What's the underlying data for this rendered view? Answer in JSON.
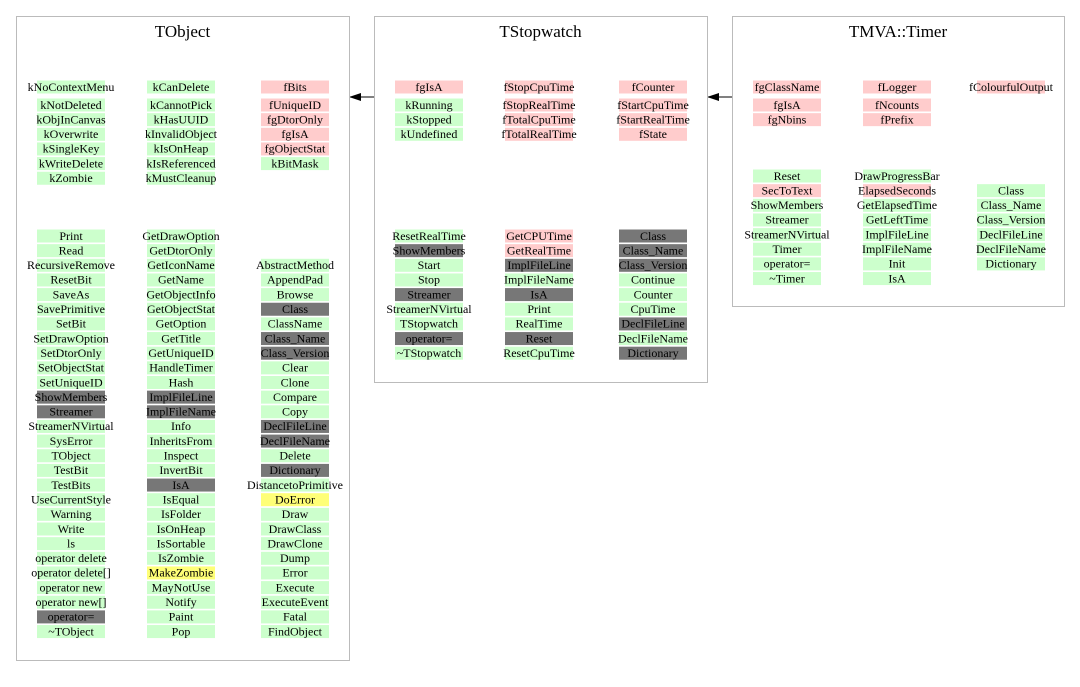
{
  "boxes": [
    {
      "title": "TObject",
      "members": [
        [
          {
            "label": "kNoContextMenu",
            "color": "#ccffcc"
          },
          {
            "label": "kNotDeleted",
            "color": "#ccffcc"
          },
          {
            "label": "kObjInCanvas",
            "color": "#ccffcc"
          },
          {
            "label": "kOverwrite",
            "color": "#ccffcc"
          },
          {
            "label": "kSingleKey",
            "color": "#ccffcc"
          },
          {
            "label": "kWriteDelete",
            "color": "#ccffcc"
          },
          {
            "label": "kZombie",
            "color": "#ccffcc"
          }
        ],
        [
          {
            "label": "kCanDelete",
            "color": "#ccffcc"
          },
          {
            "label": "kCannotPick",
            "color": "#ccffcc"
          },
          {
            "label": "kHasUUID",
            "color": "#ccffcc"
          },
          {
            "label": "kInvalidObject",
            "color": "#ccffcc"
          },
          {
            "label": "kIsOnHeap",
            "color": "#ccffcc"
          },
          {
            "label": "kIsReferenced",
            "color": "#ccffcc"
          },
          {
            "label": "kMustCleanup",
            "color": "#ccffcc"
          }
        ],
        [
          {
            "label": "fBits",
            "color": "#ffcccc"
          },
          {
            "label": "fUniqueID",
            "color": "#ffcccc"
          },
          {
            "label": "fgDtorOnly",
            "color": "#ffcccc"
          },
          {
            "label": "fgIsA",
            "color": "#ffcccc"
          },
          {
            "label": "fgObjectStat",
            "color": "#ffcccc"
          },
          {
            "label": "kBitMask",
            "color": "#ccffcc"
          }
        ]
      ],
      "methods": [
        [
          {
            "label": "Print",
            "color": "#ccffcc"
          },
          {
            "label": "Read",
            "color": "#ccffcc"
          },
          {
            "label": "RecursiveRemove",
            "color": "#ccffcc"
          },
          {
            "label": "ResetBit",
            "color": "#ccffcc"
          },
          {
            "label": "SaveAs",
            "color": "#ccffcc"
          },
          {
            "label": "SavePrimitive",
            "color": "#ccffcc"
          },
          {
            "label": "SetBit",
            "color": "#ccffcc"
          },
          {
            "label": "SetDrawOption",
            "color": "#ccffcc"
          },
          {
            "label": "SetDtorOnly",
            "color": "#ccffcc"
          },
          {
            "label": "SetObjectStat",
            "color": "#ccffcc"
          },
          {
            "label": "SetUniqueID",
            "color": "#ccffcc"
          },
          {
            "label": "ShowMembers",
            "color": "#777777"
          },
          {
            "label": "Streamer",
            "color": "#777777"
          },
          {
            "label": "StreamerNVirtual",
            "color": "#ccffcc"
          },
          {
            "label": "SysError",
            "color": "#ccffcc"
          },
          {
            "label": "TObject",
            "color": "#ccffcc"
          },
          {
            "label": "TestBit",
            "color": "#ccffcc"
          },
          {
            "label": "TestBits",
            "color": "#ccffcc"
          },
          {
            "label": "UseCurrentStyle",
            "color": "#ccffcc"
          },
          {
            "label": "Warning",
            "color": "#ccffcc"
          },
          {
            "label": "Write",
            "color": "#ccffcc"
          },
          {
            "label": "ls",
            "color": "#ccffcc"
          },
          {
            "label": "operator delete",
            "color": "#ccffcc"
          },
          {
            "label": "operator delete[]",
            "color": "#ccffcc"
          },
          {
            "label": "operator new",
            "color": "#ccffcc"
          },
          {
            "label": "operator new[]",
            "color": "#ccffcc"
          },
          {
            "label": "operator=",
            "color": "#777777"
          },
          {
            "label": "~TObject",
            "color": "#ccffcc"
          }
        ],
        [
          {
            "label": "GetDrawOption",
            "color": "#ccffcc"
          },
          {
            "label": "GetDtorOnly",
            "color": "#ccffcc"
          },
          {
            "label": "GetIconName",
            "color": "#ccffcc"
          },
          {
            "label": "GetName",
            "color": "#ccffcc"
          },
          {
            "label": "GetObjectInfo",
            "color": "#ccffcc"
          },
          {
            "label": "GetObjectStat",
            "color": "#ccffcc"
          },
          {
            "label": "GetOption",
            "color": "#ccffcc"
          },
          {
            "label": "GetTitle",
            "color": "#ccffcc"
          },
          {
            "label": "GetUniqueID",
            "color": "#ccffcc"
          },
          {
            "label": "HandleTimer",
            "color": "#ccffcc"
          },
          {
            "label": "Hash",
            "color": "#ccffcc"
          },
          {
            "label": "ImplFileLine",
            "color": "#777777"
          },
          {
            "label": "ImplFileName",
            "color": "#777777"
          },
          {
            "label": "Info",
            "color": "#ccffcc"
          },
          {
            "label": "InheritsFrom",
            "color": "#ccffcc"
          },
          {
            "label": "Inspect",
            "color": "#ccffcc"
          },
          {
            "label": "InvertBit",
            "color": "#ccffcc"
          },
          {
            "label": "IsA",
            "color": "#777777"
          },
          {
            "label": "IsEqual",
            "color": "#ccffcc"
          },
          {
            "label": "IsFolder",
            "color": "#ccffcc"
          },
          {
            "label": "IsOnHeap",
            "color": "#ccffcc"
          },
          {
            "label": "IsSortable",
            "color": "#ccffcc"
          },
          {
            "label": "IsZombie",
            "color": "#ccffcc"
          },
          {
            "label": "MakeZombie",
            "color": "#ffff77"
          },
          {
            "label": "MayNotUse",
            "color": "#ccffcc"
          },
          {
            "label": "Notify",
            "color": "#ccffcc"
          },
          {
            "label": "Paint",
            "color": "#ccffcc"
          },
          {
            "label": "Pop",
            "color": "#ccffcc"
          }
        ],
        [
          {
            "label": "AbstractMethod",
            "color": "#ccffcc"
          },
          {
            "label": "AppendPad",
            "color": "#ccffcc"
          },
          {
            "label": "Browse",
            "color": "#ccffcc"
          },
          {
            "label": "Class",
            "color": "#777777"
          },
          {
            "label": "ClassName",
            "color": "#ccffcc"
          },
          {
            "label": "Class_Name",
            "color": "#777777"
          },
          {
            "label": "Class_Version",
            "color": "#777777"
          },
          {
            "label": "Clear",
            "color": "#ccffcc"
          },
          {
            "label": "Clone",
            "color": "#ccffcc"
          },
          {
            "label": "Compare",
            "color": "#ccffcc"
          },
          {
            "label": "Copy",
            "color": "#ccffcc"
          },
          {
            "label": "DeclFileLine",
            "color": "#777777"
          },
          {
            "label": "DeclFileName",
            "color": "#777777"
          },
          {
            "label": "Delete",
            "color": "#ccffcc"
          },
          {
            "label": "Dictionary",
            "color": "#777777"
          },
          {
            "label": "DistancetoPrimitive",
            "color": "#ccffcc"
          },
          {
            "label": "DoError",
            "color": "#ffff77"
          },
          {
            "label": "Draw",
            "color": "#ccffcc"
          },
          {
            "label": "DrawClass",
            "color": "#ccffcc"
          },
          {
            "label": "DrawClone",
            "color": "#ccffcc"
          },
          {
            "label": "Dump",
            "color": "#ccffcc"
          },
          {
            "label": "Error",
            "color": "#ccffcc"
          },
          {
            "label": "Execute",
            "color": "#ccffcc"
          },
          {
            "label": "ExecuteEvent",
            "color": "#ccffcc"
          },
          {
            "label": "Fatal",
            "color": "#ccffcc"
          },
          {
            "label": "FindObject",
            "color": "#ccffcc"
          }
        ]
      ]
    },
    {
      "title": "TStopwatch",
      "members": [
        [
          {
            "label": "fgIsA",
            "color": "#ffcccc"
          },
          {
            "label": "kRunning",
            "color": "#ccffcc"
          },
          {
            "label": "kStopped",
            "color": "#ccffcc"
          },
          {
            "label": "kUndefined",
            "color": "#ccffcc"
          }
        ],
        [
          {
            "label": "fStopCpuTime",
            "color": "#ffcccc"
          },
          {
            "label": "fStopRealTime",
            "color": "#ffcccc"
          },
          {
            "label": "fTotalCpuTime",
            "color": "#ffcccc"
          },
          {
            "label": "fTotalRealTime",
            "color": "#ffcccc"
          }
        ],
        [
          {
            "label": "fCounter",
            "color": "#ffcccc"
          },
          {
            "label": "fStartCpuTime",
            "color": "#ffcccc"
          },
          {
            "label": "fStartRealTime",
            "color": "#ffcccc"
          },
          {
            "label": "fState",
            "color": "#ffcccc"
          }
        ]
      ],
      "methods": [
        [
          {
            "label": "ResetRealTime",
            "color": "#ccffcc"
          },
          {
            "label": "ShowMembers",
            "color": "#777777"
          },
          {
            "label": "Start",
            "color": "#ccffcc"
          },
          {
            "label": "Stop",
            "color": "#ccffcc"
          },
          {
            "label": "Streamer",
            "color": "#777777"
          },
          {
            "label": "StreamerNVirtual",
            "color": "#ccffcc"
          },
          {
            "label": "TStopwatch",
            "color": "#ccffcc"
          },
          {
            "label": "operator=",
            "color": "#777777"
          },
          {
            "label": "~TStopwatch",
            "color": "#ccffcc"
          }
        ],
        [
          {
            "label": "GetCPUTime",
            "color": "#ffcccc"
          },
          {
            "label": "GetRealTime",
            "color": "#ffcccc"
          },
          {
            "label": "ImplFileLine",
            "color": "#777777"
          },
          {
            "label": "ImplFileName",
            "color": "#ccffcc"
          },
          {
            "label": "IsA",
            "color": "#777777"
          },
          {
            "label": "Print",
            "color": "#ccffcc"
          },
          {
            "label": "RealTime",
            "color": "#ccffcc"
          },
          {
            "label": "Reset",
            "color": "#777777"
          },
          {
            "label": "ResetCpuTime",
            "color": "#ccffcc"
          }
        ],
        [
          {
            "label": "Class",
            "color": "#777777"
          },
          {
            "label": "Class_Name",
            "color": "#777777"
          },
          {
            "label": "Class_Version",
            "color": "#777777"
          },
          {
            "label": "Continue",
            "color": "#ccffcc"
          },
          {
            "label": "Counter",
            "color": "#ccffcc"
          },
          {
            "label": "CpuTime",
            "color": "#ccffcc"
          },
          {
            "label": "DeclFileLine",
            "color": "#777777"
          },
          {
            "label": "DeclFileName",
            "color": "#ccffcc"
          },
          {
            "label": "Dictionary",
            "color": "#777777"
          }
        ]
      ]
    },
    {
      "title": "TMVA::Timer",
      "members": [
        [
          {
            "label": "fgClassName",
            "color": "#ffcccc"
          },
          {
            "label": "fgIsA",
            "color": "#ffcccc"
          },
          {
            "label": "fgNbins",
            "color": "#ffcccc"
          }
        ],
        [
          {
            "label": "fLogger",
            "color": "#ffcccc"
          },
          {
            "label": "fNcounts",
            "color": "#ffcccc"
          },
          {
            "label": "fPrefix",
            "color": "#ffcccc"
          }
        ],
        [
          {
            "label": "fColourfulOutput",
            "color": "#ffcccc"
          }
        ]
      ],
      "methods": [
        [
          {
            "label": "Reset",
            "color": "#ccffcc"
          },
          {
            "label": "SecToText",
            "color": "#ffcccc"
          },
          {
            "label": "ShowMembers",
            "color": "#ccffcc"
          },
          {
            "label": "Streamer",
            "color": "#ccffcc"
          },
          {
            "label": "StreamerNVirtual",
            "color": "#ccffcc"
          },
          {
            "label": "Timer",
            "color": "#ccffcc"
          },
          {
            "label": "operator=",
            "color": "#ccffcc"
          },
          {
            "label": "~Timer",
            "color": "#ccffcc"
          }
        ],
        [
          {
            "label": "DrawProgressBar",
            "color": "#ccffcc"
          },
          {
            "label": "ElapsedSeconds",
            "color": "#ffcccc"
          },
          {
            "label": "GetElapsedTime",
            "color": "#ccffcc"
          },
          {
            "label": "GetLeftTime",
            "color": "#ccffcc"
          },
          {
            "label": "ImplFileLine",
            "color": "#ccffcc"
          },
          {
            "label": "ImplFileName",
            "color": "#ccffcc"
          },
          {
            "label": "Init",
            "color": "#ccffcc"
          },
          {
            "label": "IsA",
            "color": "#ccffcc"
          }
        ],
        [
          {
            "label": "Class",
            "color": "#ccffcc"
          },
          {
            "label": "Class_Name",
            "color": "#ccffcc"
          },
          {
            "label": "Class_Version",
            "color": "#ccffcc"
          },
          {
            "label": "DeclFileLine",
            "color": "#ccffcc"
          },
          {
            "label": "DeclFileName",
            "color": "#ccffcc"
          },
          {
            "label": "Dictionary",
            "color": "#ccffcc"
          }
        ]
      ]
    }
  ]
}
